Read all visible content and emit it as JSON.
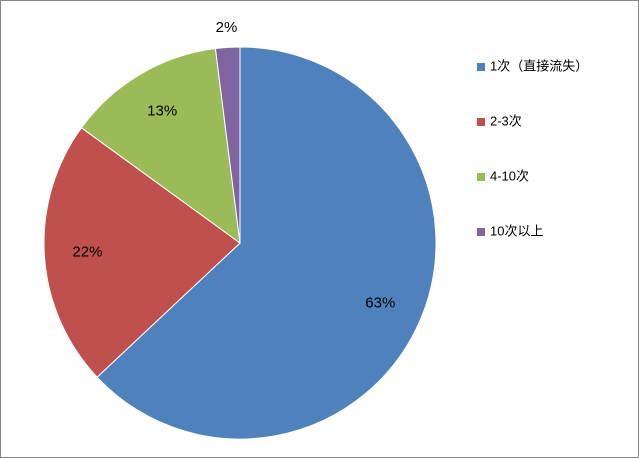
{
  "chart_data": {
    "type": "pie",
    "categories": [
      "1次（直接流失）",
      "2-3次",
      "4-10次",
      "10次以上"
    ],
    "values": [
      63,
      22,
      13,
      2
    ],
    "value_labels": [
      "63%",
      "22%",
      "13%",
      "2%"
    ],
    "colors": [
      "#4f81bd",
      "#c0504d",
      "#9bbb59",
      "#8064a2"
    ],
    "legend": "right"
  }
}
